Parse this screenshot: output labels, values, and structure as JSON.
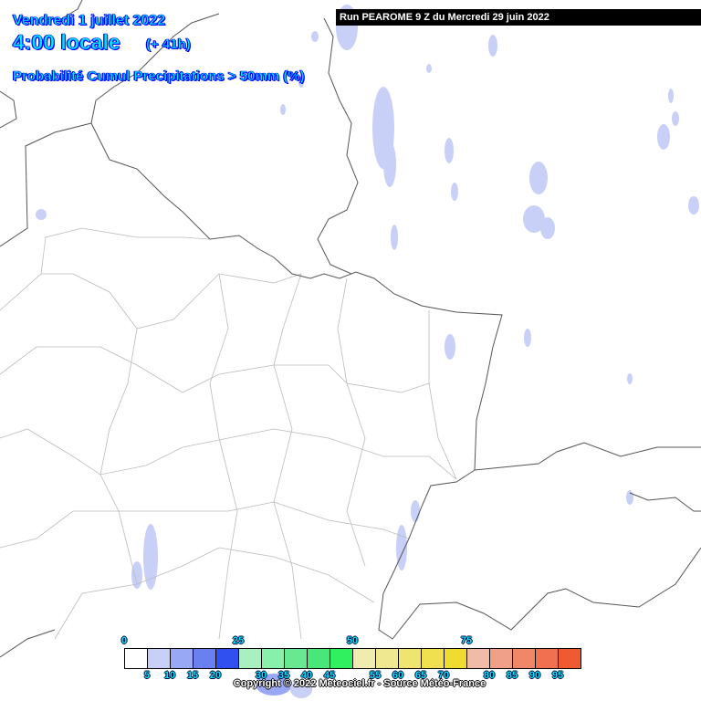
{
  "header": {
    "date": "Vendredi 1 juillet 2022",
    "time": "4:00 locale",
    "lead": "(+ 41h)",
    "parameter": "Probabilité Cumul Precipitations > 50mm (%)",
    "run": "Run PEAROME 9 Z du Mercredi 29 juin 2022"
  },
  "legend": {
    "colors": [
      "#ffffff",
      "#c8d0f8",
      "#98a8f4",
      "#6880f0",
      "#3050f0",
      "#a8f0c0",
      "#88f0a8",
      "#68e890",
      "#48e878",
      "#30f060",
      "#f0ecb0",
      "#f0e890",
      "#f0e470",
      "#f0e050",
      "#f0dc30",
      "#f0bca8",
      "#f0a088",
      "#f08868",
      "#f07050",
      "#f05a30"
    ],
    "top_labels": [
      "0",
      "25",
      "50",
      "75"
    ],
    "bottom_labels": [
      "5",
      "10",
      "15",
      "20",
      "30",
      "35",
      "40",
      "45",
      "55",
      "60",
      "65",
      "70",
      "80",
      "85",
      "90",
      "95"
    ]
  },
  "copyright": "Copyright © 2022 Meteociel.fr - Source Météo-France"
}
